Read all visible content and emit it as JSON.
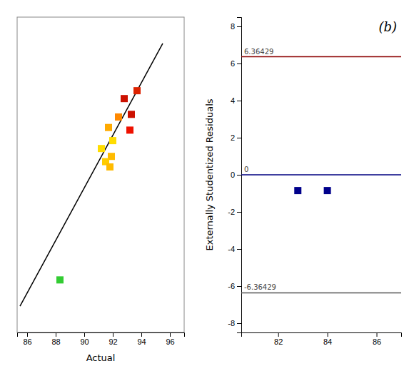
{
  "chart_data": [
    {
      "type": "scatter",
      "x_label": "Actual",
      "series": [
        {
          "type": "line",
          "color": "#000000",
          "x": [
            85.5,
            95.5
          ],
          "values": [
            85.5,
            95.5
          ]
        },
        {
          "type": "scatter",
          "marker": "square",
          "x": [
            88.3,
            91.2,
            91.7,
            92.0,
            92.4,
            91.9,
            92.8,
            93.3,
            93.7,
            93.2,
            91.5,
            91.8
          ],
          "values": [
            86.5,
            91.5,
            92.3,
            91.8,
            92.7,
            91.2,
            93.4,
            92.8,
            93.7,
            92.2,
            91.0,
            90.8
          ],
          "colors": [
            "#33cc33",
            "#ffdd00",
            "#ffaa00",
            "#ffdd00",
            "#ff8800",
            "#ffbb00",
            "#cc1100",
            "#cc1100",
            "#dd2200",
            "#ee1100",
            "#ffcc00",
            "#ffbb00"
          ]
        }
      ],
      "xlim": [
        85.3,
        97.0
      ],
      "ylim": [
        84.5,
        96.5
      ],
      "xticks": [
        86,
        88,
        90,
        92,
        94,
        96
      ],
      "tick_labels": "x"
    },
    {
      "type": "scatter",
      "y_label": "Externally Studentized Residuals",
      "annotation": "(b)",
      "series": [
        {
          "type": "scatter",
          "marker": "square",
          "color": "#00008b",
          "x": [
            82.8,
            84.0
          ],
          "values": [
            -0.85,
            -0.85
          ]
        }
      ],
      "reference_lines": [
        {
          "value": 6.36429,
          "label": "6.36429",
          "color": "#8b0000"
        },
        {
          "value": -6.36429,
          "label": "-6.36429",
          "color": "#555555"
        },
        {
          "value": 0,
          "label": "0",
          "color": "#000080"
        }
      ],
      "xlim": [
        80.5,
        87.0
      ],
      "ylim": [
        -8.5,
        8.5
      ],
      "xticks": [
        82,
        84,
        86
      ],
      "yticks": [
        -8.0,
        -6.0,
        -4.0,
        -2.0,
        0.0,
        2.0,
        4.0,
        6.0,
        8.0
      ]
    }
  ]
}
